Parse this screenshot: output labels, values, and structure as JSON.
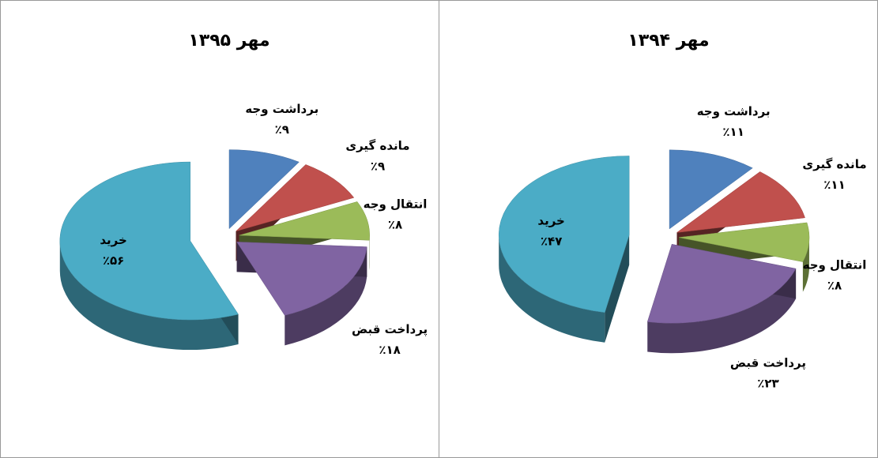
{
  "chart_data": [
    {
      "type": "pie3d",
      "title": "مهر ۱۳۹۵",
      "categories": [
        "برداشت وجه",
        "مانده گیری",
        "انتقال وجه",
        "پرداخت قبض",
        "خرید"
      ],
      "values": [
        9,
        9,
        8,
        18,
        56
      ],
      "value_labels": [
        "٪۹",
        "٪۹",
        "٪۸",
        "٪۱۸",
        "٪۵۶"
      ],
      "colors": [
        "#4f81bd",
        "#c0504d",
        "#9bbb59",
        "#8064a2",
        "#4bacc6"
      ]
    },
    {
      "type": "pie3d",
      "title": "مهر ۱۳۹۴",
      "categories": [
        "برداشت وجه",
        "مانده گیری",
        "انتقال وجه",
        "پرداخت قبض",
        "خرید"
      ],
      "values": [
        11,
        11,
        8,
        23,
        47
      ],
      "value_labels": [
        "٪۱۱",
        "٪۱۱",
        "٪۸",
        "٪۲۳",
        "٪۴۷"
      ],
      "colors": [
        "#4f81bd",
        "#c0504d",
        "#9bbb59",
        "#8064a2",
        "#4bacc6"
      ]
    }
  ]
}
